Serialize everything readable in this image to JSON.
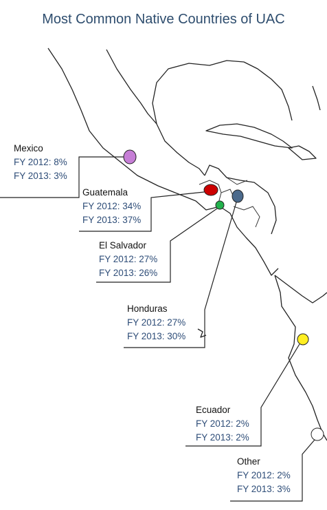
{
  "title": "Most Common Native Countries of UAC",
  "callouts": [
    {
      "name": "Mexico",
      "lines": [
        "FY 2012: 8%",
        "FY 2013: 3%"
      ],
      "color": "#c67ed6"
    },
    {
      "name": "Guatemala",
      "lines": [
        "FY 2012: 34%",
        "FY 2013: 37%"
      ],
      "color": "#cc0000"
    },
    {
      "name": "El Salvador",
      "lines": [
        "FY 2012: 27%",
        "FY 2013: 26%"
      ],
      "color": "#22b14c"
    },
    {
      "name": "Honduras",
      "lines": [
        "FY 2012: 27%",
        "FY 2013: 30%"
      ],
      "color": "#4b6a8c"
    },
    {
      "name": "Ecuador",
      "lines": [
        "FY 2012: 2%",
        "FY 2013: 2%"
      ],
      "color": "#ffee22"
    },
    {
      "name": "Other",
      "lines": [
        "FY 2012: 2%",
        "FY 2013: 3%"
      ],
      "color": "#ffffff"
    }
  ]
}
